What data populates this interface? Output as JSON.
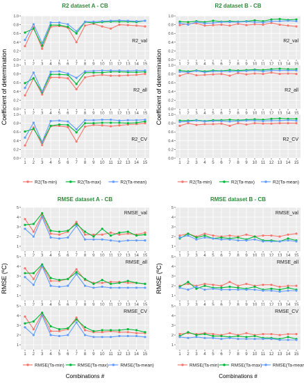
{
  "figure": {
    "xlabel_shared": "Combinations #",
    "colors": {
      "min": "#f8766d",
      "max": "#00ba38",
      "mean": "#619cff",
      "title": "#2e8b3a"
    }
  },
  "chart_data": [
    {
      "type": "line",
      "title": "R2 dataset A - CB",
      "ylabel": "Coefficient of determination",
      "ylim": [
        0,
        1.0
      ],
      "yticks": [
        "0.0",
        "0.2",
        "0.4",
        "0.6",
        "0.8",
        "1.0"
      ],
      "grid": true,
      "legend_position": "bottom",
      "x": [
        1,
        2,
        3,
        4,
        5,
        6,
        7,
        8,
        9,
        10,
        11,
        12,
        13,
        14,
        15
      ],
      "legend": [
        "R2(Ta-min)",
        "R2(Ta-max)",
        "R2(Ta-mean)"
      ],
      "panels": [
        {
          "label": "R2_val",
          "series": [
            {
              "name": "R2(Ta-min)",
              "values": [
                0.31,
                0.74,
                0.25,
                0.75,
                0.77,
                0.73,
                0.4,
                0.78,
                0.82,
                0.76,
                0.71,
                0.8,
                0.79,
                0.78,
                0.76
              ]
            },
            {
              "name": "R2(Ta-max)",
              "values": [
                0.62,
                0.71,
                0.32,
                0.79,
                0.79,
                0.75,
                0.6,
                0.86,
                0.84,
                0.86,
                0.87,
                0.87,
                0.87,
                0.86,
                0.89
              ]
            },
            {
              "name": "R2(Ta-mean)",
              "values": [
                0.45,
                0.81,
                0.38,
                0.85,
                0.85,
                0.81,
                0.65,
                0.87,
                0.87,
                0.88,
                0.89,
                0.9,
                0.89,
                0.88,
                0.89
              ]
            }
          ]
        },
        {
          "label": "R2_all",
          "series": [
            {
              "name": "R2(Ta-min)",
              "values": [
                0.31,
                0.7,
                0.33,
                0.72,
                0.72,
                0.7,
                0.45,
                0.72,
                0.76,
                0.78,
                0.76,
                0.76,
                0.77,
                0.78,
                0.8
              ]
            },
            {
              "name": "R2(Ta-max)",
              "values": [
                0.59,
                0.7,
                0.38,
                0.79,
                0.79,
                0.78,
                0.57,
                0.83,
                0.83,
                0.83,
                0.85,
                0.85,
                0.84,
                0.84,
                0.85
              ]
            },
            {
              "name": "R2(Ta-mean)",
              "values": [
                0.48,
                0.83,
                0.4,
                0.85,
                0.86,
                0.81,
                0.71,
                0.86,
                0.87,
                0.88,
                0.88,
                0.88,
                0.87,
                0.88,
                0.88
              ]
            }
          ]
        },
        {
          "label": "R2_CV",
          "series": [
            {
              "name": "R2(Ta-min)",
              "values": [
                0.29,
                0.7,
                0.3,
                0.73,
                0.74,
                0.71,
                0.38,
                0.72,
                0.76,
                0.75,
                0.73,
                0.75,
                0.77,
                0.78,
                0.8
              ]
            },
            {
              "name": "R2(Ta-max)",
              "values": [
                0.61,
                0.67,
                0.36,
                0.74,
                0.77,
                0.76,
                0.59,
                0.8,
                0.8,
                0.81,
                0.81,
                0.81,
                0.8,
                0.81,
                0.84
              ]
            },
            {
              "name": "R2(Ta-mean)",
              "values": [
                0.47,
                0.81,
                0.37,
                0.85,
                0.86,
                0.84,
                0.66,
                0.87,
                0.87,
                0.88,
                0.88,
                0.86,
                0.87,
                0.87,
                0.88
              ]
            }
          ]
        }
      ]
    },
    {
      "type": "line",
      "title": "R2 dataset B - CB",
      "ylabel": "Coefficient of determination",
      "ylim": [
        0,
        1.0
      ],
      "yticks": [
        "0.0",
        "0.2",
        "0.4",
        "0.6",
        "0.8",
        "1.0"
      ],
      "grid": true,
      "legend_position": "bottom",
      "x": [
        1,
        2,
        3,
        4,
        5,
        6,
        7,
        8,
        9,
        10,
        11,
        12,
        13,
        14,
        15
      ],
      "legend": [
        "R2(Ta-min)",
        "R2(Ta-max)",
        "R2(Ta-mean)"
      ],
      "panels": [
        {
          "label": "R2_val",
          "series": [
            {
              "name": "R2(Ta-min)",
              "values": [
                0.79,
                0.82,
                0.83,
                0.78,
                0.79,
                0.8,
                0.78,
                0.82,
                0.79,
                0.81,
                0.8,
                0.84,
                0.8,
                0.78,
                0.76
              ]
            },
            {
              "name": "R2(Ta-max)",
              "values": [
                0.87,
                0.86,
                0.88,
                0.86,
                0.89,
                0.87,
                0.88,
                0.87,
                0.88,
                0.9,
                0.88,
                0.92,
                0.93,
                0.91,
                0.92
              ]
            },
            {
              "name": "R2(Ta-mean)",
              "values": [
                0.84,
                0.8,
                0.86,
                0.83,
                0.84,
                0.86,
                0.86,
                0.86,
                0.87,
                0.86,
                0.85,
                0.88,
                0.88,
                0.89,
                0.88
              ]
            }
          ]
        },
        {
          "label": "R2_all",
          "series": [
            {
              "name": "R2(Ta-min)",
              "values": [
                0.76,
                0.82,
                0.77,
                0.78,
                0.79,
                0.8,
                0.76,
                0.82,
                0.79,
                0.81,
                0.8,
                0.83,
                0.8,
                0.81,
                0.8
              ]
            },
            {
              "name": "R2(Ta-max)",
              "values": [
                0.88,
                0.86,
                0.88,
                0.86,
                0.88,
                0.87,
                0.89,
                0.88,
                0.89,
                0.9,
                0.89,
                0.91,
                0.92,
                0.91,
                0.91
              ]
            },
            {
              "name": "R2(Ta-mean)",
              "values": [
                0.85,
                0.84,
                0.87,
                0.84,
                0.86,
                0.86,
                0.86,
                0.86,
                0.87,
                0.88,
                0.86,
                0.88,
                0.88,
                0.88,
                0.88
              ]
            }
          ]
        },
        {
          "label": "R2_CV",
          "series": [
            {
              "name": "R2(Ta-min)",
              "values": [
                0.74,
                0.8,
                0.76,
                0.78,
                0.78,
                0.79,
                0.74,
                0.8,
                0.77,
                0.8,
                0.79,
                0.79,
                0.8,
                0.8,
                0.8
              ]
            },
            {
              "name": "R2(Ta-max)",
              "values": [
                0.86,
                0.86,
                0.87,
                0.85,
                0.87,
                0.87,
                0.88,
                0.87,
                0.88,
                0.89,
                0.88,
                0.9,
                0.91,
                0.9,
                0.9
              ]
            },
            {
              "name": "R2(Ta-mean)",
              "values": [
                0.83,
                0.84,
                0.86,
                0.84,
                0.85,
                0.85,
                0.84,
                0.85,
                0.86,
                0.86,
                0.85,
                0.86,
                0.86,
                0.87,
                0.86
              ]
            }
          ]
        }
      ]
    },
    {
      "type": "line",
      "title": "RMSE dataset A - CB",
      "ylabel": "RMSE (ºC)",
      "ylim": [
        0.5,
        5
      ],
      "yticks": [
        "1",
        "2",
        "3",
        "4",
        "5"
      ],
      "grid": true,
      "legend_position": "bottom",
      "xlabel": "Combinations #",
      "x": [
        1,
        2,
        3,
        4,
        5,
        6,
        7,
        8,
        9,
        10,
        11,
        12,
        13,
        14,
        15
      ],
      "legend": [
        "RMSE(Ta-min)",
        "RMSE(Ta-max)",
        "RMSE(Ta-mean)"
      ],
      "panels": [
        {
          "label": "RMSE_val",
          "series": [
            {
              "name": "RMSE(Ta-min)",
              "values": [
                3.8,
                2.5,
                4.2,
                2.3,
                2.2,
                2.5,
                3.5,
                2.2,
                2.2,
                2.2,
                2.4,
                2.2,
                2.3,
                2.2,
                2.4
              ]
            },
            {
              "name": "RMSE(Ta-max)",
              "values": [
                3.2,
                3.3,
                4.4,
                2.6,
                2.5,
                2.6,
                3.3,
                2.5,
                2.0,
                2.8,
                2.1,
                2.4,
                2.5,
                2.1,
                2.2
              ]
            },
            {
              "name": "RMSE(Ta-mean)",
              "values": [
                2.8,
                2.0,
                4.0,
                1.9,
                1.8,
                1.9,
                3.1,
                1.7,
                1.7,
                1.7,
                1.6,
                1.5,
                1.6,
                1.6,
                1.6
              ]
            }
          ]
        },
        {
          "label": "RMSE_all",
          "series": [
            {
              "name": "RMSE(Ta-min)",
              "values": [
                3.8,
                2.7,
                4.1,
                2.5,
                2.5,
                2.7,
                3.7,
                2.6,
                2.3,
                2.3,
                2.4,
                2.4,
                2.3,
                2.3,
                2.2
              ]
            },
            {
              "name": "RMSE(Ta-max)",
              "values": [
                3.3,
                3.3,
                4.2,
                2.8,
                2.6,
                2.7,
                3.4,
                2.7,
                2.2,
                2.6,
                2.2,
                2.3,
                2.5,
                2.3,
                2.2
              ]
            },
            {
              "name": "RMSE(Ta-mean)",
              "values": [
                2.9,
                2.1,
                4.0,
                2.0,
                1.9,
                2.0,
                3.2,
                2.0,
                1.8,
                1.9,
                1.8,
                1.8,
                1.8,
                1.8,
                1.8
              ]
            }
          ]
        },
        {
          "label": "RMSE_CV",
          "series": [
            {
              "name": "RMSE(Ta-min)",
              "values": [
                3.9,
                2.6,
                4.2,
                2.4,
                2.4,
                2.6,
                3.8,
                2.5,
                2.3,
                2.3,
                2.4,
                2.3,
                2.3,
                2.2,
                2.2
              ]
            },
            {
              "name": "RMSE(Ta-max)",
              "values": [
                3.2,
                3.4,
                4.3,
                2.9,
                2.6,
                2.7,
                3.6,
                2.8,
                2.4,
                2.5,
                2.5,
                2.5,
                2.6,
                2.5,
                2.3
              ]
            },
            {
              "name": "RMSE(Ta-mean)",
              "values": [
                2.8,
                2.0,
                4.0,
                2.0,
                1.9,
                2.0,
                3.3,
                2.0,
                1.8,
                1.8,
                1.8,
                1.9,
                1.9,
                1.9,
                1.8
              ]
            }
          ]
        }
      ]
    },
    {
      "type": "line",
      "title": "RMSE dataset B - CB",
      "ylabel": "RMSE (ºC)",
      "ylim": [
        0.5,
        5
      ],
      "yticks": [
        "1",
        "2",
        "3",
        "4",
        "5"
      ],
      "grid": true,
      "legend_position": "bottom",
      "xlabel": "Combinations #",
      "x": [
        1,
        2,
        3,
        4,
        5,
        6,
        7,
        8,
        9,
        10,
        11,
        12,
        13,
        14,
        15
      ],
      "legend": [
        "RMSE(Ta-min)",
        "RMSE(Ta-max)",
        "RMSE(Ta-mean)"
      ],
      "panels": [
        {
          "label": "RMSE_val",
          "series": [
            {
              "name": "RMSE(Ta-min)",
              "values": [
                2.1,
                2.3,
                2.0,
                2.3,
                2.1,
                2.0,
                2.1,
                2.0,
                2.2,
                2.0,
                2.1,
                2.1,
                2.0,
                2.2,
                2.3
              ]
            },
            {
              "name": "RMSE(Ta-max)",
              "values": [
                1.8,
                2.3,
                1.9,
                2.1,
                1.8,
                1.9,
                1.8,
                1.9,
                1.7,
                2.0,
                1.6,
                1.6,
                1.5,
                1.8,
                1.6
              ]
            },
            {
              "name": "RMSE(Ta-mean)",
              "values": [
                1.9,
                2.1,
                1.7,
                1.9,
                1.8,
                1.7,
                1.7,
                1.6,
                1.6,
                1.7,
                1.5,
                1.5,
                1.5,
                1.6,
                1.5
              ]
            }
          ]
        },
        {
          "label": "RMSE_all",
          "series": [
            {
              "name": "RMSE(Ta-min)",
              "values": [
                2.0,
                2.2,
                2.0,
                2.2,
                2.1,
                2.0,
                2.4,
                2.0,
                2.2,
                2.0,
                2.1,
                2.1,
                1.9,
                2.0,
                2.0
              ]
            },
            {
              "name": "RMSE(Ta-max)",
              "values": [
                1.9,
                2.4,
                1.7,
                2.0,
                1.8,
                1.8,
                1.9,
                1.8,
                1.7,
                1.9,
                1.6,
                1.7,
                1.6,
                1.8,
                1.6
              ]
            },
            {
              "name": "RMSE(Ta-mean)",
              "values": [
                1.8,
                1.6,
                1.9,
                1.6,
                1.7,
                1.6,
                1.6,
                1.6,
                1.6,
                1.6,
                1.5,
                1.5,
                1.4,
                1.5,
                1.5
              ]
            }
          ]
        },
        {
          "label": "RMSE_CV",
          "series": [
            {
              "name": "RMSE(Ta-min)",
              "values": [
                2.1,
                2.2,
                2.1,
                2.2,
                2.1,
                2.0,
                2.2,
                2.0,
                2.2,
                2.0,
                2.1,
                2.1,
                2.0,
                2.1,
                2.1
              ]
            },
            {
              "name": "RMSE(Ta-max)",
              "values": [
                1.9,
                2.3,
                2.0,
                2.1,
                1.9,
                1.9,
                1.8,
                1.9,
                1.8,
                1.9,
                1.7,
                1.7,
                1.6,
                1.8,
                1.6
              ]
            },
            {
              "name": "RMSE(Ta-mean)",
              "values": [
                1.8,
                1.7,
                1.8,
                1.7,
                1.7,
                1.6,
                1.7,
                1.6,
                1.6,
                1.6,
                1.6,
                1.6,
                1.5,
                1.5,
                1.5
              ]
            }
          ]
        }
      ]
    }
  ]
}
